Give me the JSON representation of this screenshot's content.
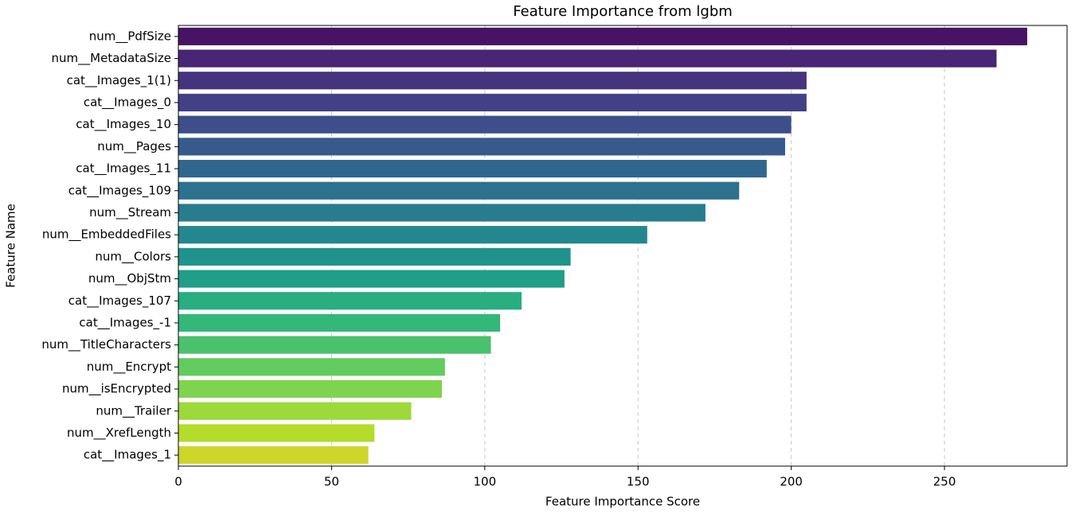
{
  "chart_data": {
    "type": "barh",
    "title": "Feature Importance from lgbm",
    "x_label": "Feature Importance Score",
    "y_label": "Feature Name",
    "categories": [
      "num__PdfSize",
      "num__MetadataSize",
      "cat__Images_1(1)",
      "cat__Images_0",
      "cat__Images_10",
      "num__Pages",
      "cat__Images_11",
      "cat__Images_109",
      "num__Stream",
      "num__EmbeddedFiles",
      "num__Colors",
      "num__ObjStm",
      "cat__Images_107",
      "cat__Images_-1",
      "num__TitleCharacters",
      "num__Encrypt",
      "num__isEncrypted",
      "num__Trailer",
      "num__XrefLength",
      "cat__Images_1"
    ],
    "values": [
      277,
      267,
      205,
      205,
      200,
      198,
      192,
      183,
      172,
      153,
      128,
      126,
      112,
      105,
      102,
      87,
      86,
      76,
      64,
      62
    ],
    "colors": [
      "#471365",
      "#482575",
      "#46337e",
      "#424186",
      "#3c4f8a",
      "#375a8c",
      "#31668e",
      "#2c718e",
      "#287c8e",
      "#24878e",
      "#20928c",
      "#1f9e89",
      "#28ae80",
      "#35b779",
      "#4ac16d",
      "#62cb5f",
      "#7fd34e",
      "#9dd93b",
      "#b3dc2b",
      "#cdd629"
    ],
    "xlim": [
      0,
      290
    ],
    "xticks": [
      0,
      50,
      100,
      150,
      200,
      250
    ],
    "grid": true
  }
}
